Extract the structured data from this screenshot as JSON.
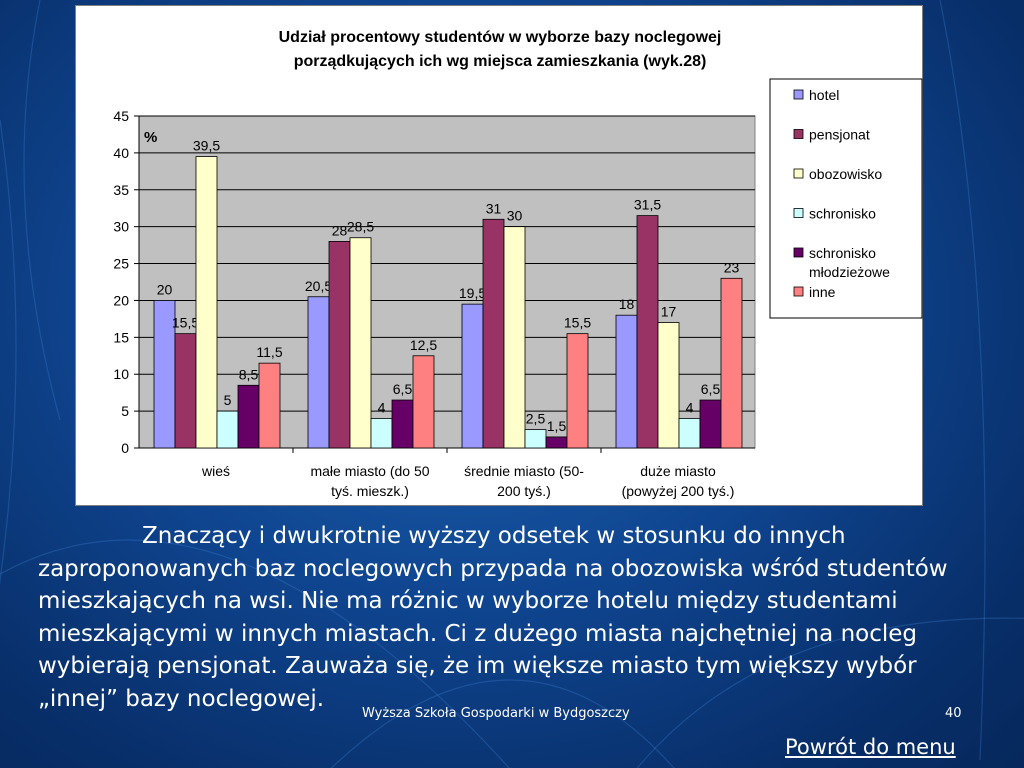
{
  "chart_data": {
    "type": "bar",
    "title": "Udział procentowy studentów w wyborze bazy noclegowej porządkujących ich wg miejsca zamieszkania (wyk.28)",
    "title_lines": [
      "Udział procentowy studentów w wyborze bazy noclegowej",
      "porządkujących ich wg miejsca zamieszkania (wyk.28)"
    ],
    "ylabel": "%",
    "ylim": [
      0,
      45
    ],
    "yticks": [
      "0",
      "5",
      "10",
      "15",
      "20",
      "25",
      "30",
      "35",
      "40",
      "45"
    ],
    "categories": [
      "wieś",
      "małe miasto (do 50 tyś. mieszk.)",
      "średnie miasto (50-200 tyś.)",
      "duże miasto (powyżej 200 tyś.)"
    ],
    "category_lines": [
      [
        "wieś"
      ],
      [
        "małe miasto (do 50",
        "tyś. mieszk.)"
      ],
      [
        "średnie miasto (50-",
        "200 tyś.)"
      ],
      [
        "duże miasto",
        "(powyżej 200 tyś.)"
      ]
    ],
    "series": [
      {
        "name": "hotel",
        "values": [
          20,
          20.5,
          19.5,
          18
        ],
        "labels": [
          "20",
          "20,5",
          "19,5",
          "18"
        ],
        "color": "#9999ff"
      },
      {
        "name": "pensjonat",
        "values": [
          15.5,
          28,
          31,
          31.5
        ],
        "labels": [
          "15,5",
          "28",
          "31",
          "31,5"
        ],
        "color": "#993366"
      },
      {
        "name": "obozowisko",
        "values": [
          39.5,
          28.5,
          30,
          17
        ],
        "labels": [
          "39,5",
          "28,5",
          "30",
          "17"
        ],
        "color": "#ffffcc"
      },
      {
        "name": "schronisko",
        "values": [
          5,
          4,
          2.5,
          4
        ],
        "labels": [
          "5",
          "4",
          "2,5",
          "4"
        ],
        "color": "#ccffff"
      },
      {
        "name": "schronisko młodzieżowe",
        "name_lines": [
          "schronisko",
          "młodzieżowe"
        ],
        "values": [
          8.5,
          6.5,
          1.5,
          6.5
        ],
        "labels": [
          "8,5",
          "6,5",
          "1,5",
          "6,5"
        ],
        "color": "#660066"
      },
      {
        "name": "inne",
        "values": [
          11.5,
          12.5,
          15.5,
          23
        ],
        "labels": [
          "11,5",
          "12,5",
          "15,5",
          "23"
        ],
        "color": "#ff8080"
      }
    ],
    "plot_background": "#c0c0c0",
    "grid": true,
    "legend": "right"
  },
  "body_text": "Znaczący i dwukrotnie wyższy odsetek w stosunku do innych zaproponowanych baz noclegowych przypada na obozowiska wśród studentów mieszkających na wsi. Nie ma różnic w wyborze hotelu między studentami mieszkającymi w innych miastach. Ci z dużego miasta najchętniej na nocleg wybierają pensjonat. Zauważa się, że im większe miasto tym większy wybór „innej” bazy noclegowej.",
  "footer": {
    "school": "Wyższa Szkoła Gospodarki w Bydgoszczy",
    "page_number": "40"
  },
  "menu_link": "Powrót do menu",
  "colors": {
    "background": "#0f4590",
    "text": "#ffffff"
  }
}
